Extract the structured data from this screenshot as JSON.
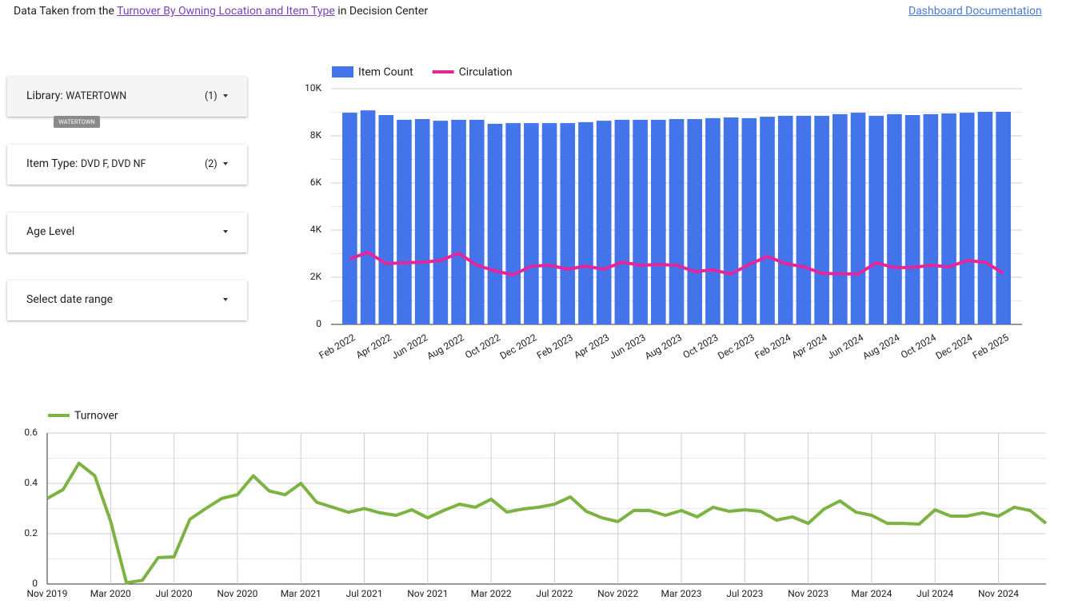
{
  "header": {
    "prefix": "Data Taken from the",
    "link": "Turnover By Owning Location and Item Type",
    "suffix": "in Decision Center",
    "doc_link": "Dashboard Documentation"
  },
  "filters": [
    {
      "label": "Library:",
      "value": "WATERTOWN",
      "count": "(1)",
      "tooltip": "WATERTOWN"
    },
    {
      "label": "Item Type:",
      "value": "DVD F, DVD NF",
      "count": "(2)"
    },
    {
      "label": "Age Level"
    },
    {
      "label": "Select date range"
    }
  ],
  "chart_data": [
    {
      "type": "bar",
      "categories": [
        "Feb 2022",
        null,
        "Apr 2022",
        null,
        "Jun 2022",
        null,
        "Aug 2022",
        null,
        "Oct 2022",
        null,
        "Dec 2022",
        null,
        "Feb 2023",
        null,
        "Apr 2023",
        null,
        "Jun 2023",
        null,
        "Aug 2023",
        null,
        "Oct 2023",
        null,
        "Dec 2023",
        null,
        "Feb 2024",
        null,
        "Apr 2024",
        null,
        "Jun 2024",
        null,
        "Aug 2024",
        null,
        "Oct 2024",
        null,
        "Dec 2024",
        null,
        "Feb 2025"
      ],
      "series": [
        {
          "name": "Item Count",
          "type": "bar",
          "color": "#4374ea",
          "values": [
            8980,
            9080,
            8880,
            8680,
            8710,
            8640,
            8680,
            8680,
            8510,
            8540,
            8540,
            8540,
            8540,
            8580,
            8640,
            8680,
            8680,
            8680,
            8710,
            8710,
            8750,
            8780,
            8750,
            8810,
            8850,
            8850,
            8850,
            8920,
            8980,
            8850,
            8920,
            8880,
            8920,
            8950,
            8980,
            9020,
            9020
          ]
        },
        {
          "name": "Circulation",
          "type": "line",
          "color": "#e5269a",
          "values": [
            2780,
            3050,
            2580,
            2610,
            2640,
            2710,
            3020,
            2510,
            2270,
            2100,
            2470,
            2510,
            2340,
            2470,
            2340,
            2640,
            2510,
            2540,
            2510,
            2240,
            2310,
            2140,
            2540,
            2880,
            2580,
            2440,
            2170,
            2140,
            2140,
            2610,
            2410,
            2410,
            2510,
            2440,
            2710,
            2640,
            2170
          ]
        }
      ],
      "ylim": [
        0,
        10000
      ],
      "yticks": [
        0,
        {
          "value": 2000,
          "label": "2K"
        },
        {
          "value": 4000,
          "label": "4K"
        },
        {
          "value": 6000,
          "label": "6K"
        },
        {
          "value": 8000,
          "label": "8K"
        },
        {
          "value": 10000,
          "label": "10K"
        }
      ],
      "grid": true
    },
    {
      "type": "line",
      "categories": [
        "Nov 2019",
        null,
        null,
        null,
        "Mar 2020",
        null,
        null,
        null,
        "Jul 2020",
        null,
        null,
        null,
        "Nov 2020",
        null,
        null,
        null,
        "Mar 2021",
        null,
        null,
        null,
        "Jul 2021",
        null,
        null,
        null,
        "Nov 2021",
        null,
        null,
        null,
        "Mar 2022",
        null,
        null,
        null,
        "Jul 2022",
        null,
        null,
        null,
        "Nov 2022",
        null,
        null,
        null,
        "Mar 2023",
        null,
        null,
        null,
        "Jul 2023",
        null,
        null,
        null,
        "Nov 2023",
        null,
        null,
        null,
        "Mar 2024",
        null,
        null,
        null,
        "Jul 2024",
        null,
        null,
        null,
        "Nov 2024",
        null,
        null,
        null
      ],
      "series": [
        {
          "name": "Turnover",
          "type": "line",
          "color": "#7cb342",
          "values": [
            0.34,
            0.375,
            0.48,
            0.43,
            0.25,
            0.005,
            0.015,
            0.105,
            0.108,
            0.257,
            0.3,
            0.34,
            0.355,
            0.43,
            0.37,
            0.355,
            0.4,
            0.325,
            0.305,
            0.285,
            0.3,
            0.283,
            0.273,
            0.295,
            0.263,
            0.292,
            0.317,
            0.305,
            0.337,
            0.286,
            0.298,
            0.305,
            0.317,
            0.346,
            0.289,
            0.263,
            0.248,
            0.292,
            0.292,
            0.273,
            0.292,
            0.267,
            0.305,
            0.289,
            0.295,
            0.289,
            0.254,
            0.267,
            0.241,
            0.298,
            0.33,
            0.286,
            0.273,
            0.241,
            0.241,
            0.238,
            0.295,
            0.27,
            0.27,
            0.283,
            0.27,
            0.305,
            0.292,
            0.241
          ]
        }
      ],
      "ylim": [
        0,
        0.6
      ],
      "yticks": [
        0,
        0.2,
        0.4,
        0.6
      ],
      "grid": true
    }
  ]
}
